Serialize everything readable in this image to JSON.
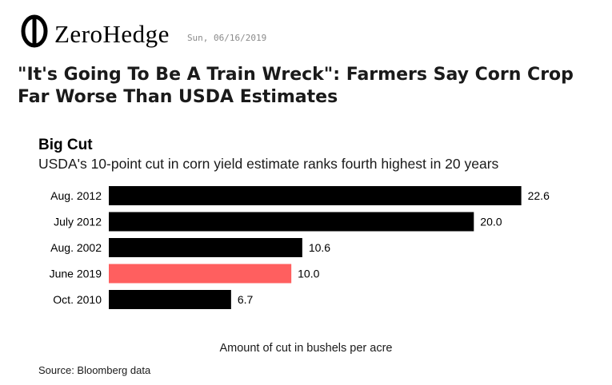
{
  "site": {
    "name": "ZeroHedge",
    "logo_icon": "zerohedge-logo-icon",
    "date": "Sun, 06/16/2019"
  },
  "article": {
    "headline": "\"It's Going To Be A Train Wreck\": Farmers Say Corn Crop Far Worse Than USDA Estimates"
  },
  "chart_data": {
    "type": "bar",
    "orientation": "horizontal",
    "title": "Big Cut",
    "subtitle": "USDA's 10-point cut in corn yield estimate ranks fourth highest in 20 years",
    "categories": [
      "Aug. 2012",
      "July 2012",
      "Aug. 2002",
      "June 2019",
      "Oct. 2010"
    ],
    "values": [
      22.6,
      20.0,
      10.6,
      10.0,
      6.7
    ],
    "value_labels": [
      "22.6",
      "20.0",
      "10.6",
      "10.0",
      "6.7"
    ],
    "highlight_category": "June 2019",
    "xlabel": "Amount of cut in bushels per acre",
    "ylabel": "",
    "xlim": [
      0,
      23.8
    ],
    "grid": false,
    "legend": "none",
    "source": "Source: Bloomberg data",
    "colors": {
      "bar": "#000000",
      "highlight": "#ff5f5f"
    }
  }
}
